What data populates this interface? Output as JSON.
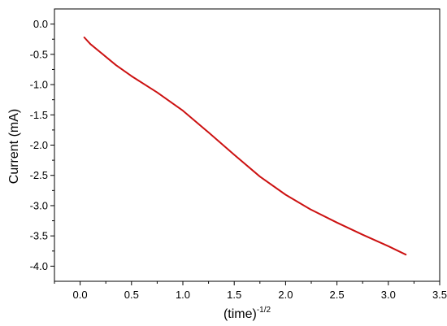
{
  "chart_data": {
    "type": "line",
    "title": "",
    "xlabel": "(time)",
    "xlabel_superscript": "-1/2",
    "ylabel": "Current (mA)",
    "xlim": [
      -0.25,
      3.5
    ],
    "ylim": [
      -4.25,
      0.25
    ],
    "xticks": [
      0.0,
      0.5,
      1.0,
      1.5,
      2.0,
      2.5,
      3.0,
      3.5
    ],
    "xtick_labels": [
      "0.0",
      "0.5",
      "1.0",
      "1.5",
      "2.0",
      "2.5",
      "3.0",
      "3.5"
    ],
    "yticks": [
      0.0,
      -0.5,
      -1.0,
      -1.5,
      -2.0,
      -2.5,
      -3.0,
      -3.5,
      -4.0
    ],
    "ytick_labels": [
      "0.0",
      "-0.5",
      "-1.0",
      "-1.5",
      "-2.0",
      "-2.5",
      "-3.0",
      "-3.5",
      "-4.0"
    ],
    "grid": false,
    "legend": "none",
    "series": [
      {
        "color": "#cc1111",
        "x": [
          0.04,
          0.1,
          0.2,
          0.35,
          0.5,
          0.75,
          1.0,
          1.25,
          1.5,
          1.75,
          2.0,
          2.24,
          2.5,
          2.75,
          3.0,
          3.17
        ],
        "y": [
          -0.22,
          -0.33,
          -0.47,
          -0.68,
          -0.86,
          -1.13,
          -1.43,
          -1.79,
          -2.16,
          -2.52,
          -2.82,
          -3.06,
          -3.28,
          -3.48,
          -3.67,
          -3.81
        ]
      }
    ]
  }
}
